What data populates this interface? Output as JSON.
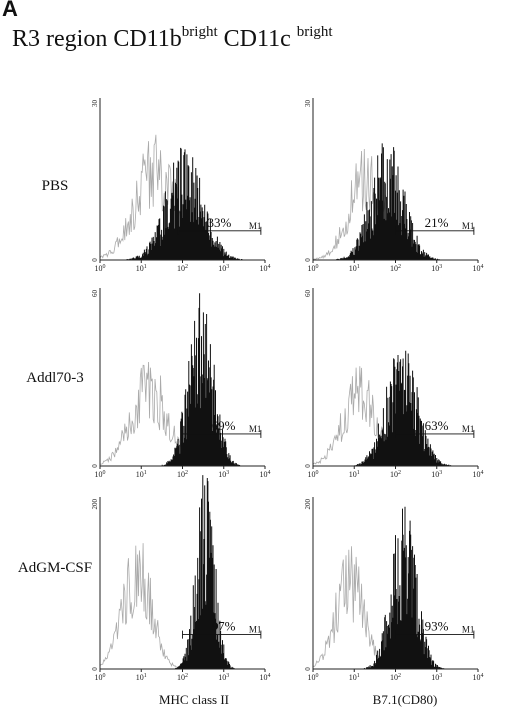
{
  "figure": {
    "panel_letter": "A",
    "title_main": "R3 region CD11b",
    "title_sup1": "bright",
    "title_mid": " CD11c",
    "title_sup2": "bright"
  },
  "chart_data": {
    "type": "histogram-grid",
    "rows": [
      {
        "label": "PBS",
        "ymax": "30"
      },
      {
        "label": "Addl70-3",
        "ymax": "60"
      },
      {
        "label": "AdGM-CSF",
        "ymax": "200"
      }
    ],
    "columns": [
      {
        "xlabel": "MHC class II"
      },
      {
        "xlabel": "B7.1(CD80)"
      }
    ],
    "x_tick_labels": [
      "10",
      "10",
      "10",
      "10",
      "10"
    ],
    "x_tick_exponents": [
      "0",
      "1",
      "2",
      "3",
      "4"
    ],
    "y_tick_label_zero": "0",
    "x_scale": "log",
    "gate_label": "M1",
    "panels": [
      {
        "row": 0,
        "col": 0,
        "percent": "33%",
        "gate_range_log": [
          1.9,
          3.9
        ],
        "control": {
          "mean": 1.35,
          "sd": 0.5,
          "peak": 0.55
        },
        "sample": {
          "mean": 2.05,
          "sd": 0.45,
          "peak": 0.58
        }
      },
      {
        "row": 0,
        "col": 1,
        "percent": "21%",
        "gate_range_log": [
          2.0,
          3.9
        ],
        "control": {
          "mean": 1.3,
          "sd": 0.42,
          "peak": 0.5
        },
        "sample": {
          "mean": 1.8,
          "sd": 0.4,
          "peak": 0.62
        }
      },
      {
        "row": 1,
        "col": 0,
        "percent": "69%",
        "gate_range_log": [
          2.0,
          3.9
        ],
        "control": {
          "mean": 1.2,
          "sd": 0.45,
          "peak": 0.42
        },
        "sample": {
          "mean": 2.45,
          "sd": 0.3,
          "peak": 0.82
        }
      },
      {
        "row": 1,
        "col": 1,
        "percent": "63%",
        "gate_range_log": [
          2.0,
          3.9
        ],
        "control": {
          "mean": 1.15,
          "sd": 0.42,
          "peak": 0.4
        },
        "sample": {
          "mean": 2.15,
          "sd": 0.38,
          "peak": 0.58
        }
      },
      {
        "row": 2,
        "col": 0,
        "percent": "97%",
        "gate_range_log": [
          2.0,
          3.9
        ],
        "control": {
          "mean": 0.9,
          "sd": 0.35,
          "peak": 0.56
        },
        "sample": {
          "mean": 2.55,
          "sd": 0.22,
          "peak": 0.97
        }
      },
      {
        "row": 2,
        "col": 1,
        "percent": "93%",
        "gate_range_log": [
          2.0,
          3.9
        ],
        "control": {
          "mean": 0.9,
          "sd": 0.35,
          "peak": 0.5
        },
        "sample": {
          "mean": 2.2,
          "sd": 0.3,
          "peak": 0.8
        }
      }
    ]
  },
  "colors": {
    "sample_fill": "#111111",
    "control_line": "#aaaaaa",
    "axis": "#222222"
  }
}
